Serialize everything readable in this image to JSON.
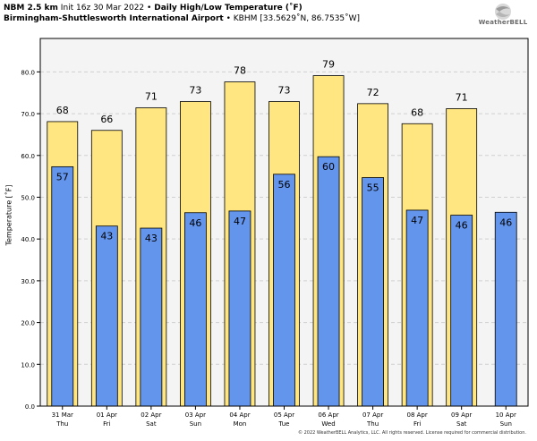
{
  "header": {
    "model": "NBM 2.5 km",
    "init": "Init 16z 30 Mar 2022",
    "sep": "•",
    "product": "Daily High/Low Temperature (˚F)",
    "location": "Birmingham-Shuttlesworth International Airport",
    "station": "• KBHM [33.5629˚N, 86.7535˚W]"
  },
  "logo": {
    "text": "WeatherBELL",
    "icon": "swirl-logo-icon"
  },
  "footer": {
    "copyright": "© 2022 WeatherBELL Analytics, LLC. All rights reserved. License required for commercial distribution."
  },
  "colors": {
    "high": "#ffe680",
    "low": "#6495ed",
    "plot_bg": "#f4f4f4",
    "grid": "#d0d0d0",
    "border": "#000000"
  },
  "chart_data": {
    "type": "bar",
    "title": "Daily High/Low Temperature (˚F)",
    "xlabel": "",
    "ylabel": "Temperature [˚F]",
    "ylim": [
      0,
      88
    ],
    "yticks": [
      "0.0",
      "10.0",
      "20.0",
      "30.0",
      "40.0",
      "50.0",
      "60.0",
      "70.0",
      "80.0"
    ],
    "grid": true,
    "categories": [
      {
        "date": "31 Mar",
        "day": "Thu"
      },
      {
        "date": "01 Apr",
        "day": "Fri"
      },
      {
        "date": "02 Apr",
        "day": "Sat"
      },
      {
        "date": "03 Apr",
        "day": "Sun"
      },
      {
        "date": "04 Apr",
        "day": "Mon"
      },
      {
        "date": "05 Apr",
        "day": "Tue"
      },
      {
        "date": "06 Apr",
        "day": "Wed"
      },
      {
        "date": "07 Apr",
        "day": "Thu"
      },
      {
        "date": "08 Apr",
        "day": "Fri"
      },
      {
        "date": "09 Apr",
        "day": "Sat"
      },
      {
        "date": "10 Apr",
        "day": "Sun"
      }
    ],
    "series": [
      {
        "values": [
          68.1,
          66.0,
          71.4,
          72.9,
          77.6,
          72.9,
          79.1,
          72.4,
          67.6,
          71.2,
          null
        ],
        "labels": [
          "68",
          "66",
          "71",
          "73",
          "78",
          "73",
          "79",
          "72",
          "68",
          "71",
          ""
        ]
      },
      {
        "values": [
          57.3,
          43.1,
          42.6,
          46.3,
          46.7,
          55.5,
          59.7,
          54.7,
          46.9,
          45.7,
          46.4
        ],
        "labels": [
          "57",
          "43",
          "43",
          "46",
          "47",
          "56",
          "60",
          "55",
          "47",
          "46",
          "46"
        ]
      }
    ]
  }
}
